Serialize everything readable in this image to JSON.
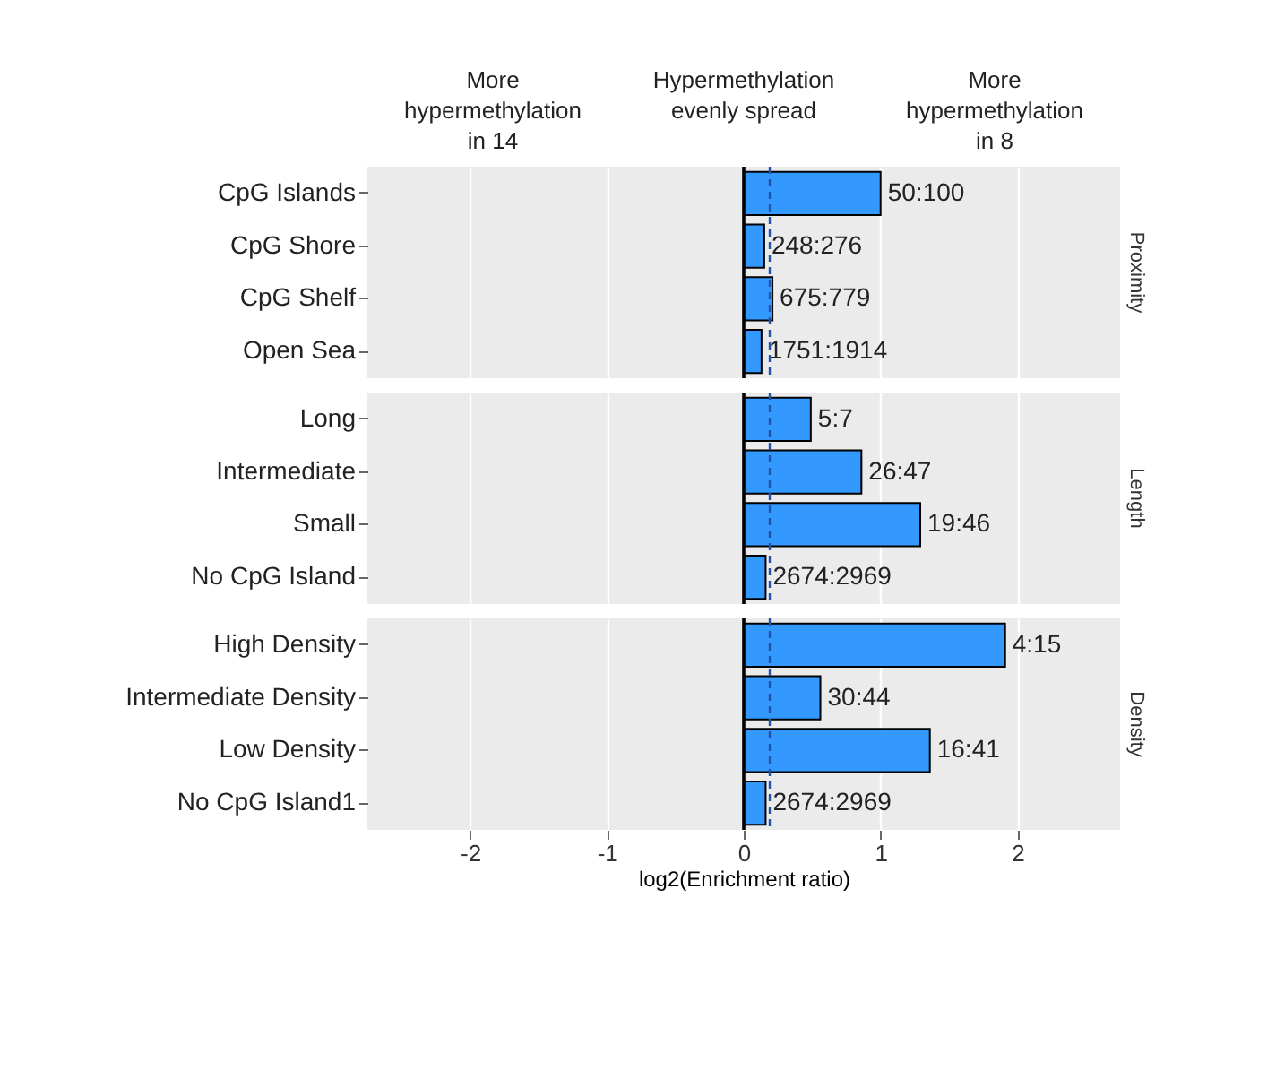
{
  "chart_data": [
    {
      "type": "bar",
      "orientation": "horizontal",
      "title": "Proximity",
      "annotations": [
        "More hypermethylation in 14",
        "Hypermethylation evenly spread",
        "More hypermethylation in 8",
        {
          "text": "50:100",
          "x": 1.0,
          "y": "CpG Islands"
        },
        {
          "text": "248:276",
          "x": 0.15,
          "y": "CpG Shore"
        },
        {
          "text": "675:779",
          "x": 0.21,
          "y": "CpG Shelf"
        },
        {
          "text": "1751:1914",
          "x": 0.13,
          "y": "Open Sea"
        }
      ],
      "categories": [
        "CpG Islands",
        "CpG Shore",
        "CpG Shelf",
        "Open Sea"
      ],
      "values": [
        1.0,
        0.15,
        0.21,
        0.13
      ],
      "color": "#3399ff",
      "xlim": [
        -2.75,
        2.75
      ],
      "xticks": [
        -2,
        -1,
        0,
        1,
        2
      ],
      "grid": "x",
      "tick_labels": "y",
      "ref_lines": [
        {
          "axis": "x",
          "value": 0,
          "color": "#000000",
          "line_style": "solid"
        },
        {
          "axis": "x",
          "value": 0.19,
          "color": "#2255aa",
          "line_style": "dashed"
        }
      ]
    },
    {
      "type": "bar",
      "orientation": "horizontal",
      "title": "Length",
      "annotations": [
        {
          "text": "5:7",
          "x": 0.49,
          "y": "Long"
        },
        {
          "text": "26:47",
          "x": 0.86,
          "y": "Intermediate"
        },
        {
          "text": "19:46",
          "x": 1.29,
          "y": "Small"
        },
        {
          "text": "2674:2969",
          "x": 0.16,
          "y": "No CpG Island"
        }
      ],
      "categories": [
        "Long",
        "Intermediate",
        "Small",
        "No CpG Island"
      ],
      "values": [
        0.49,
        0.86,
        1.29,
        0.16
      ],
      "color": "#3399ff",
      "xlim": [
        -2.75,
        2.75
      ],
      "xticks": [
        -2,
        -1,
        0,
        1,
        2
      ],
      "grid": "x",
      "tick_labels": "y",
      "ref_lines": [
        {
          "axis": "x",
          "value": 0,
          "color": "#000000",
          "line_style": "solid"
        },
        {
          "axis": "x",
          "value": 0.19,
          "color": "#2255aa",
          "line_style": "dashed"
        }
      ]
    },
    {
      "type": "bar",
      "orientation": "horizontal",
      "title": "Density",
      "xlabel": "log2(Enrichment ratio)",
      "annotations": [
        {
          "text": "4:15",
          "x": 1.91,
          "y": "High Density"
        },
        {
          "text": "30:44",
          "x": 0.56,
          "y": "Intermediate Density"
        },
        {
          "text": "16:41",
          "x": 1.36,
          "y": "Low Density"
        },
        {
          "text": "2674:2969",
          "x": 0.16,
          "y": "No CpG Island1"
        }
      ],
      "categories": [
        "High Density",
        "Intermediate Density",
        "Low Density",
        "No CpG Island1"
      ],
      "values": [
        1.91,
        0.56,
        1.36,
        0.16
      ],
      "color": "#3399ff",
      "xlim": [
        -2.75,
        2.75
      ],
      "xticks": [
        -2,
        -1,
        0,
        1,
        2
      ],
      "grid": "x",
      "ref_lines": [
        {
          "axis": "x",
          "value": 0,
          "color": "#000000",
          "line_style": "solid"
        },
        {
          "axis": "x",
          "value": 0.19,
          "color": "#2255aa",
          "line_style": "dashed"
        }
      ]
    }
  ]
}
